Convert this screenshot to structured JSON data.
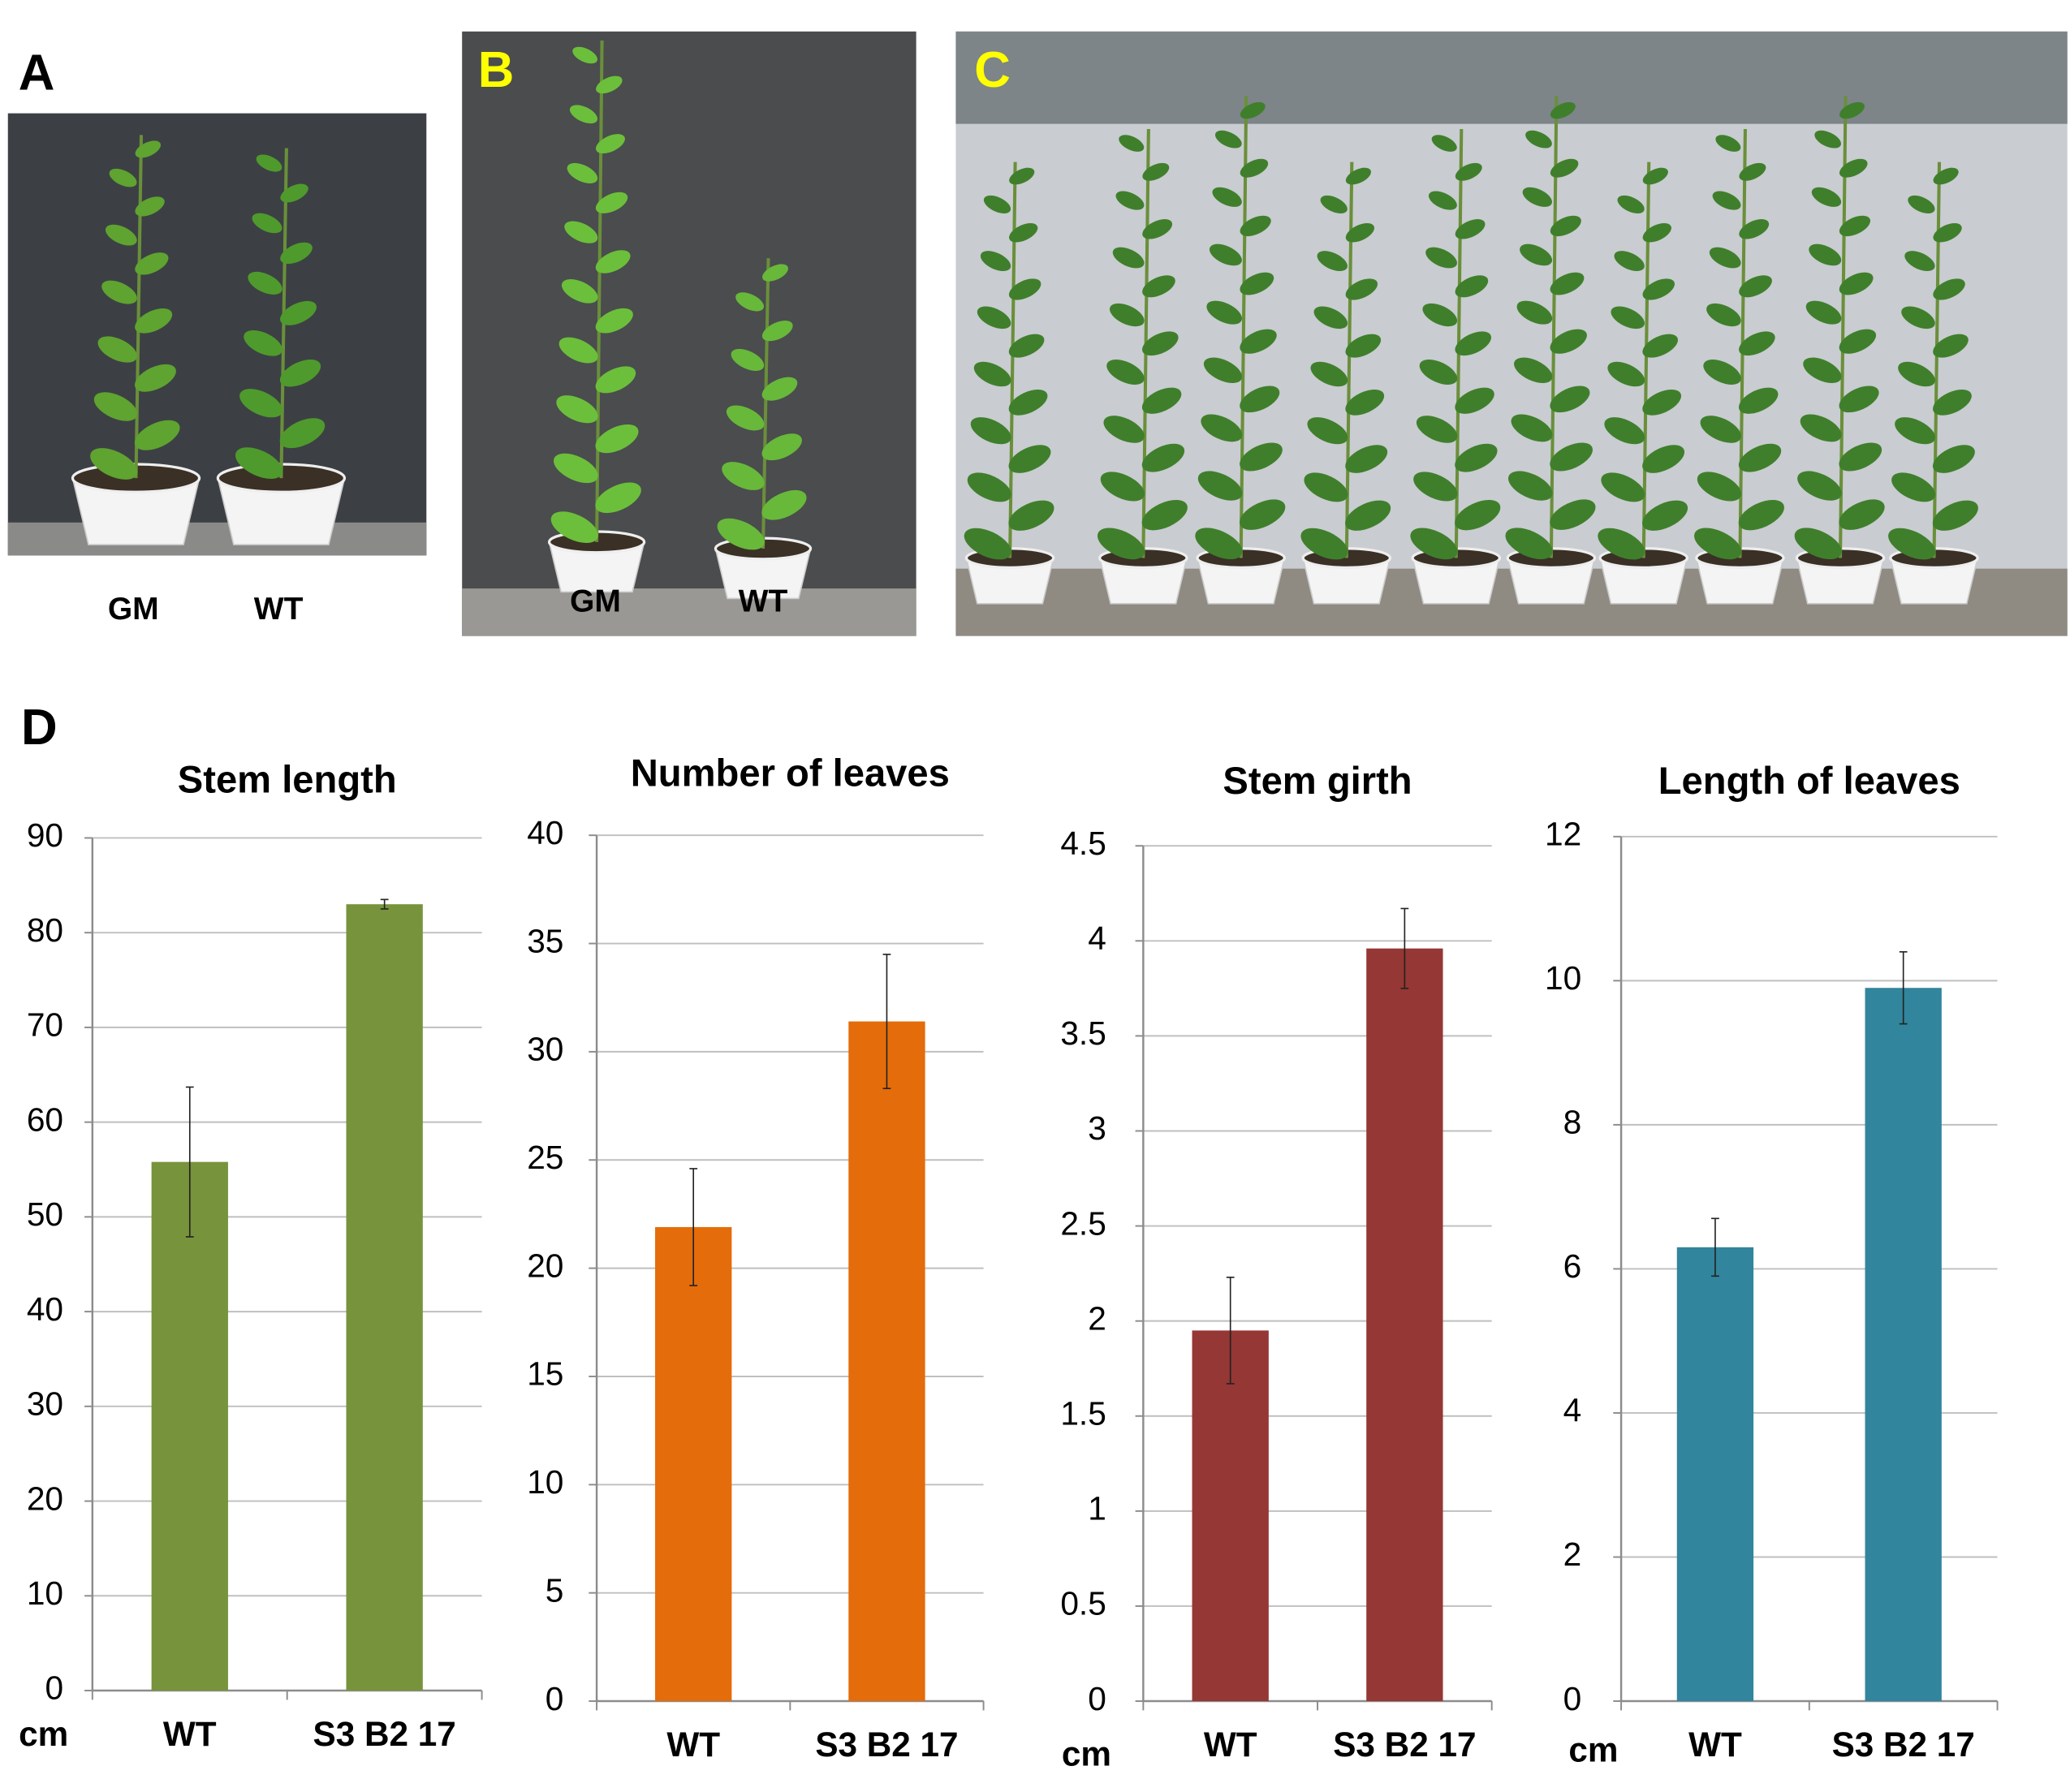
{
  "photos": {
    "panels": [
      {
        "label": "A",
        "captions": [
          "GM",
          "WT"
        ]
      },
      {
        "label": "B",
        "captions": [
          "GM",
          "WT"
        ]
      },
      {
        "label": "C"
      }
    ],
    "chart_panel_label": "D"
  },
  "chart_data": [
    {
      "type": "bar",
      "title": "Stem length",
      "ylabel": "cm",
      "categories": [
        "WT",
        "S3 B2 17"
      ],
      "values": [
        55.8,
        83
      ],
      "errors": [
        7.9,
        0.5
      ],
      "color": "#77933c",
      "ylim": [
        0,
        90
      ],
      "yticks": [
        0,
        10,
        20,
        30,
        40,
        50,
        60,
        70,
        80,
        90
      ],
      "grid": true
    },
    {
      "type": "bar",
      "title": "Number of leaves",
      "categories": [
        "WT",
        "S3 B2 17"
      ],
      "values": [
        21.9,
        31.4
      ],
      "errors": [
        2.7,
        3.1
      ],
      "color": "#e46c0a",
      "ylim": [
        0,
        40
      ],
      "yticks": [
        0,
        5,
        10,
        15,
        20,
        25,
        30,
        35,
        40
      ],
      "grid": true
    },
    {
      "type": "bar",
      "title": "Stem girth",
      "ylabel": "cm",
      "categories": [
        "WT",
        "S3 B2 17"
      ],
      "values": [
        1.95,
        3.96
      ],
      "errors": [
        0.28,
        0.21
      ],
      "color": "#953735",
      "ylim": [
        0,
        4.5
      ],
      "yticks": [
        0,
        0.5,
        1,
        1.5,
        2,
        2.5,
        3,
        3.5,
        4,
        4.5
      ],
      "grid": true
    },
    {
      "type": "bar",
      "title": "Length of leaves",
      "ylabel": "cm",
      "categories": [
        "WT",
        "S3 B2 17"
      ],
      "values": [
        6.3,
        9.9
      ],
      "errors": [
        0.4,
        0.5
      ],
      "color": "#31859c",
      "ylim": [
        0,
        12
      ],
      "yticks": [
        0,
        2,
        4,
        6,
        8,
        10,
        12
      ],
      "grid": true
    }
  ]
}
